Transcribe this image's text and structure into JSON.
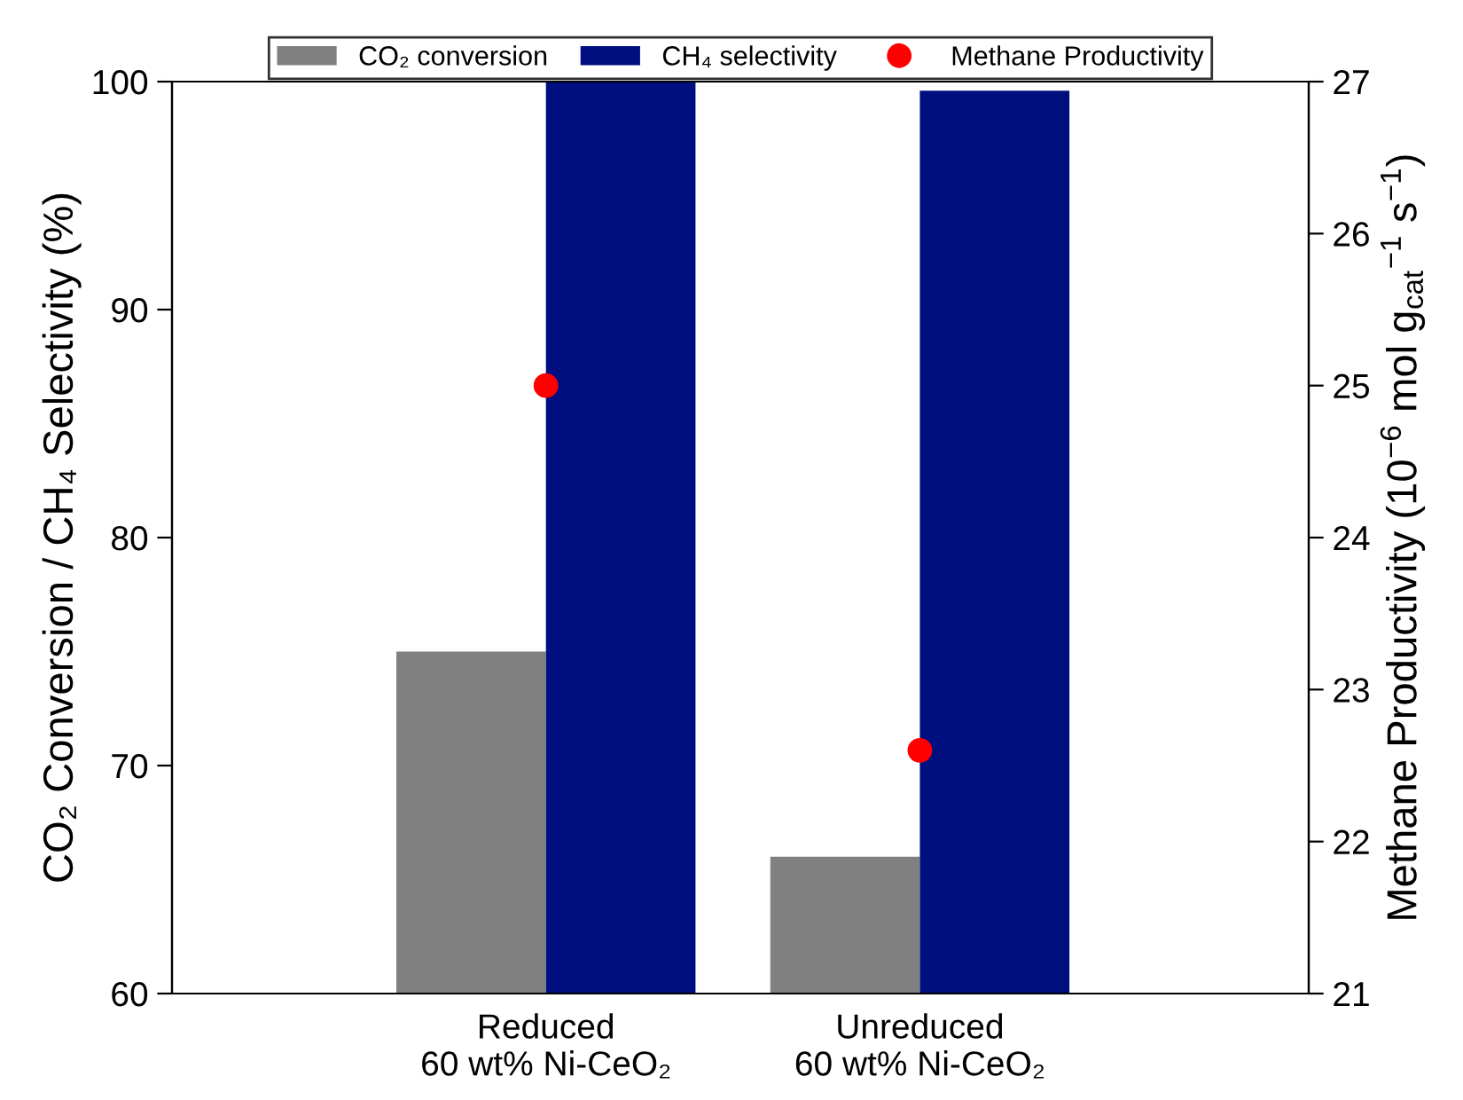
{
  "chart_data": {
    "type": "bar",
    "categories": [
      null,
      "Reduced\n60 wt% Ni-CeO₂",
      "Unreduced\n60 wt% Ni-CeO₂",
      null
    ],
    "ylabel": "CO₂ Conversion / CH₄ Selectivity (%)",
    "y2label": "Methane Productivity (10$^{−6}$ mol g$_{cat}$$^{−1}$ s$^{−1}$)",
    "ylim": [
      60,
      100
    ],
    "yticks": [
      60,
      70,
      80,
      90,
      100
    ],
    "y2lim": [
      21,
      27
    ],
    "y2ticks": [
      21,
      22,
      23,
      24,
      25,
      26,
      27
    ],
    "legend": "top",
    "grid": false,
    "series": [
      {
        "name": "CO₂ conversion",
        "color": "#808080",
        "values": [
          null,
          75,
          66,
          null
        ]
      },
      {
        "name": "CH₄ selectivity",
        "color": "#000f80",
        "values": [
          null,
          100,
          99.6,
          null
        ]
      },
      {
        "name": "Methane Productivity",
        "type": "scatter",
        "axis": "y2",
        "marker": "circle",
        "color": "#ff0000",
        "values": [
          null,
          25.0,
          22.6,
          null
        ]
      }
    ]
  }
}
